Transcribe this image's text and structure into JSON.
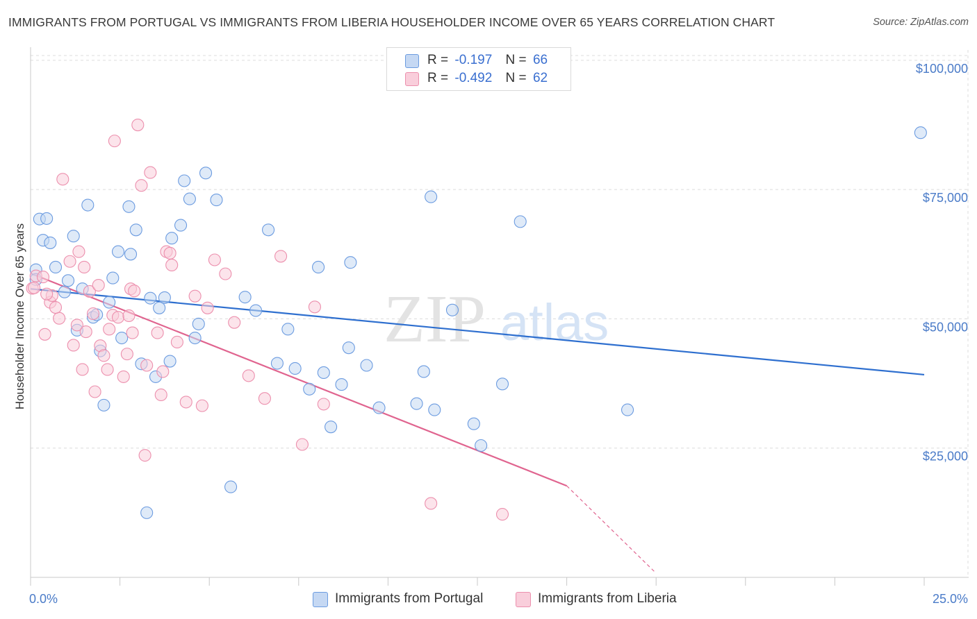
{
  "title": "IMMIGRANTS FROM PORTUGAL VS IMMIGRANTS FROM LIBERIA HOUSEHOLDER INCOME OVER 65 YEARS CORRELATION CHART",
  "source": "Source: ZipAtlas.com",
  "watermark": {
    "zip": "ZIP",
    "atlas": "atlas"
  },
  "legend": {
    "r_label": "R =",
    "n_label": "N =",
    "rows": [
      {
        "r": "-0.197",
        "n": "66",
        "color": "#a9c6ee"
      },
      {
        "r": "-0.492",
        "n": "62",
        "color": "#f6b8cb"
      }
    ]
  },
  "bottom_legend": [
    {
      "label": "Immigrants from Portugal",
      "color": "#a9c6ee"
    },
    {
      "label": "Immigrants from Liberia",
      "color": "#f6b8cb"
    }
  ],
  "chart_data": {
    "type": "scatter",
    "xlabel": "",
    "ylabel": "Householder Income Over 65 years",
    "xlim": [
      0,
      25
    ],
    "ylim": [
      0,
      102000
    ],
    "x_tick_labels": [
      "0.0%",
      "25.0%"
    ],
    "y_ticks": [
      25000,
      50000,
      75000,
      100000
    ],
    "y_tick_labels": [
      "$25,000",
      "$50,000",
      "$75,000",
      "$100,000"
    ],
    "series": [
      {
        "name": "Immigrants from Portugal",
        "color": "#6b9be0",
        "fill": "#c5d8f3",
        "trend": {
          "x": [
            0,
            25
          ],
          "y": [
            55800,
            39200
          ],
          "color": "#2e6fcf"
        },
        "points": [
          [
            0.15,
            59500
          ],
          [
            0.25,
            69300
          ],
          [
            0.35,
            65200
          ],
          [
            0.45,
            69400
          ],
          [
            0.55,
            64700
          ],
          [
            0.7,
            60000
          ],
          [
            0.95,
            55200
          ],
          [
            1.05,
            57400
          ],
          [
            1.2,
            66000
          ],
          [
            1.45,
            55800
          ],
          [
            1.6,
            72000
          ],
          [
            1.75,
            50300
          ],
          [
            1.85,
            50800
          ],
          [
            1.95,
            43800
          ],
          [
            2.05,
            33300
          ],
          [
            2.2,
            53200
          ],
          [
            2.3,
            57900
          ],
          [
            2.45,
            63000
          ],
          [
            2.55,
            46300
          ],
          [
            2.75,
            71700
          ],
          [
            2.8,
            62500
          ],
          [
            2.95,
            67200
          ],
          [
            3.1,
            41300
          ],
          [
            3.25,
            12500
          ],
          [
            3.35,
            54000
          ],
          [
            3.5,
            38800
          ],
          [
            3.6,
            52100
          ],
          [
            3.75,
            54100
          ],
          [
            3.9,
            41800
          ],
          [
            3.95,
            65600
          ],
          [
            4.2,
            68100
          ],
          [
            4.3,
            76700
          ],
          [
            4.45,
            73200
          ],
          [
            4.6,
            46300
          ],
          [
            4.7,
            49000
          ],
          [
            4.9,
            78200
          ],
          [
            5.2,
            73000
          ],
          [
            5.6,
            17500
          ],
          [
            6.0,
            54200
          ],
          [
            6.3,
            51600
          ],
          [
            6.65,
            67200
          ],
          [
            6.9,
            41400
          ],
          [
            7.2,
            48000
          ],
          [
            7.4,
            40400
          ],
          [
            7.8,
            36400
          ],
          [
            8.05,
            60000
          ],
          [
            8.2,
            39600
          ],
          [
            8.4,
            29100
          ],
          [
            8.7,
            37300
          ],
          [
            8.9,
            44400
          ],
          [
            8.95,
            60900
          ],
          [
            9.4,
            41000
          ],
          [
            9.75,
            32800
          ],
          [
            10.8,
            33600
          ],
          [
            11.0,
            39800
          ],
          [
            11.2,
            73600
          ],
          [
            11.3,
            32400
          ],
          [
            11.8,
            51700
          ],
          [
            12.4,
            29700
          ],
          [
            12.6,
            25500
          ],
          [
            13.2,
            37400
          ],
          [
            13.7,
            68800
          ],
          [
            16.7,
            32400
          ],
          [
            24.9,
            86000
          ],
          [
            0.15,
            57600
          ],
          [
            1.3,
            47800
          ]
        ]
      },
      {
        "name": "Immigrants from Liberia",
        "color": "#ec8fad",
        "fill": "#f9cedb",
        "trend": {
          "x": [
            0,
            15
          ],
          "y": [
            58800,
            17700
          ],
          "color": "#e0648f",
          "dashed_to": {
            "x": 17.5,
            "y": 800
          }
        },
        "points": [
          [
            0.05,
            55900
          ],
          [
            0.15,
            58300
          ],
          [
            0.35,
            58100
          ],
          [
            0.4,
            47000
          ],
          [
            0.55,
            53200
          ],
          [
            0.6,
            54500
          ],
          [
            0.8,
            50100
          ],
          [
            0.9,
            77000
          ],
          [
            1.1,
            61100
          ],
          [
            1.2,
            44900
          ],
          [
            1.3,
            48800
          ],
          [
            1.35,
            63000
          ],
          [
            1.45,
            40200
          ],
          [
            1.5,
            60000
          ],
          [
            1.55,
            47500
          ],
          [
            1.65,
            55300
          ],
          [
            1.75,
            51000
          ],
          [
            1.8,
            35900
          ],
          [
            1.9,
            56500
          ],
          [
            1.95,
            44800
          ],
          [
            2.05,
            42900
          ],
          [
            2.15,
            40200
          ],
          [
            2.2,
            48000
          ],
          [
            2.3,
            50700
          ],
          [
            2.35,
            84400
          ],
          [
            2.45,
            50300
          ],
          [
            2.6,
            38800
          ],
          [
            2.7,
            43200
          ],
          [
            2.75,
            50600
          ],
          [
            2.8,
            55800
          ],
          [
            2.85,
            47300
          ],
          [
            2.9,
            55400
          ],
          [
            3.0,
            87500
          ],
          [
            3.1,
            75800
          ],
          [
            3.2,
            23600
          ],
          [
            3.25,
            41000
          ],
          [
            3.35,
            78300
          ],
          [
            3.55,
            47300
          ],
          [
            3.65,
            35300
          ],
          [
            3.7,
            39800
          ],
          [
            3.8,
            63000
          ],
          [
            3.9,
            62700
          ],
          [
            3.95,
            60400
          ],
          [
            4.1,
            45500
          ],
          [
            4.35,
            33900
          ],
          [
            4.6,
            54400
          ],
          [
            4.8,
            33200
          ],
          [
            4.95,
            52100
          ],
          [
            5.15,
            61400
          ],
          [
            5.45,
            58700
          ],
          [
            5.7,
            49300
          ],
          [
            6.1,
            39000
          ],
          [
            6.55,
            34600
          ],
          [
            7.0,
            62100
          ],
          [
            7.6,
            25700
          ],
          [
            7.95,
            52300
          ],
          [
            8.2,
            33500
          ],
          [
            11.2,
            14300
          ],
          [
            13.2,
            12200
          ],
          [
            0.1,
            56000
          ],
          [
            0.45,
            54800
          ],
          [
            0.7,
            52200
          ]
        ]
      }
    ]
  }
}
